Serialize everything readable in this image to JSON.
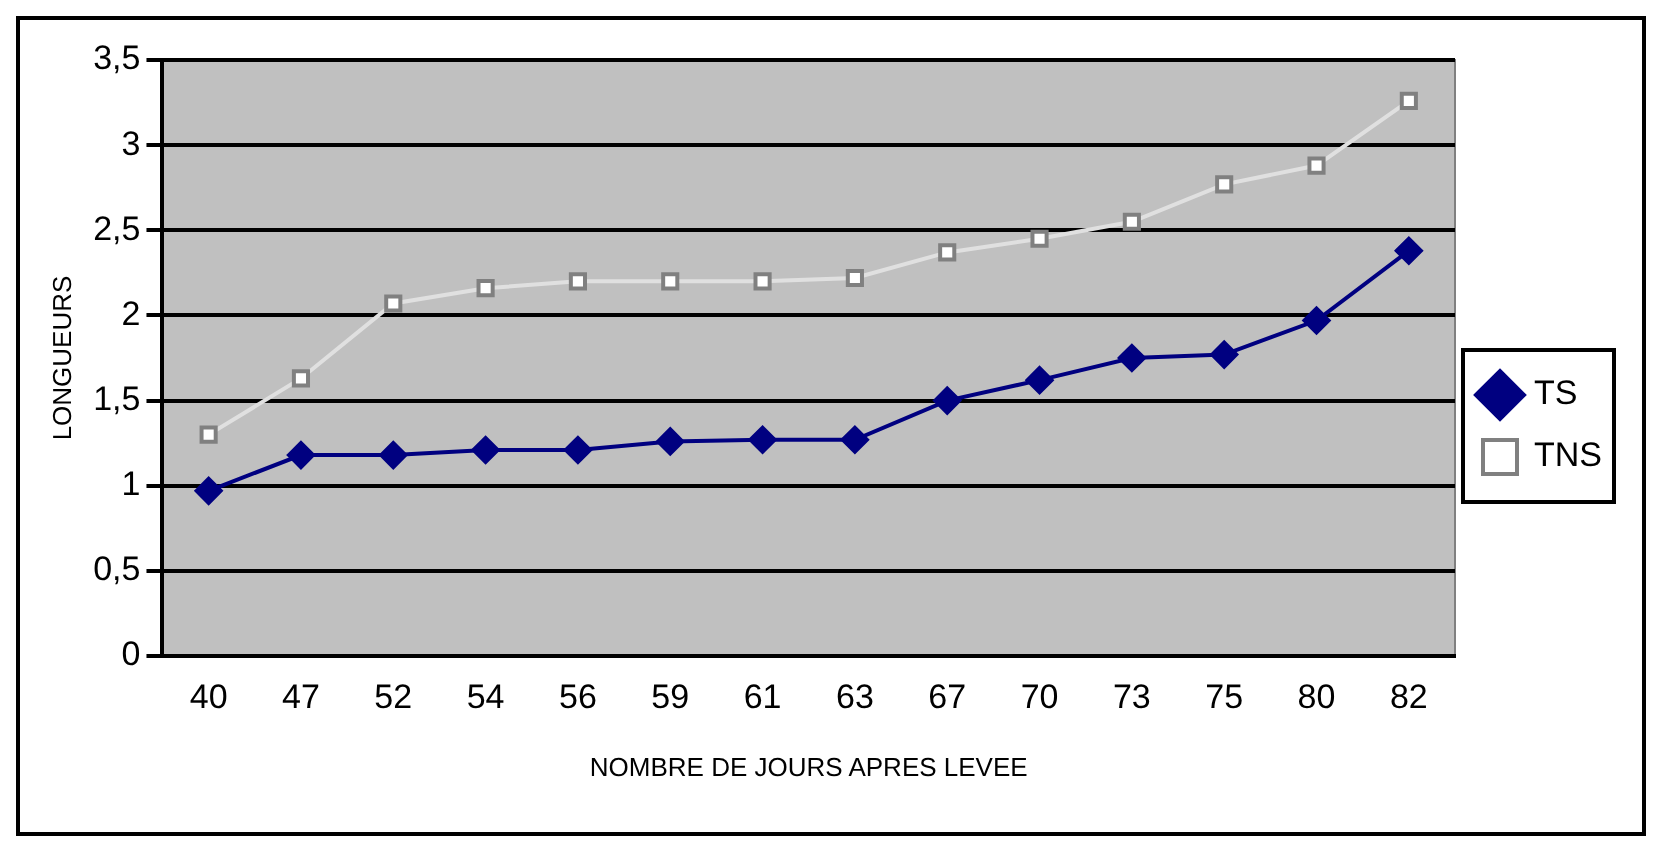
{
  "chart_data": {
    "type": "line",
    "xlabel": "NOMBRE DE JOURS APRES LEVEE",
    "ylabel": "LONGUEURS",
    "categories": [
      "40",
      "47",
      "52",
      "54",
      "56",
      "59",
      "61",
      "63",
      "67",
      "70",
      "73",
      "75",
      "80",
      "82"
    ],
    "series": [
      {
        "name": "TS",
        "color": "#000080",
        "marker": "diamond",
        "values": [
          0.97,
          1.18,
          1.18,
          1.21,
          1.21,
          1.26,
          1.27,
          1.27,
          1.5,
          1.62,
          1.75,
          1.77,
          1.97,
          2.38
        ]
      },
      {
        "name": "TNS",
        "color": "#ffffff",
        "marker": "square",
        "values": [
          1.3,
          1.63,
          2.07,
          2.16,
          2.2,
          2.2,
          2.2,
          2.22,
          2.37,
          2.45,
          2.55,
          2.77,
          2.88,
          3.26
        ]
      }
    ],
    "ylim": [
      0,
      3.5
    ],
    "yticks": [
      {
        "value": 0,
        "label": "0"
      },
      {
        "value": 0.5,
        "label": "0,5"
      },
      {
        "value": 1,
        "label": "1"
      },
      {
        "value": 1.5,
        "label": "1,5"
      },
      {
        "value": 2,
        "label": "2"
      },
      {
        "value": 2.5,
        "label": "2,5"
      },
      {
        "value": 3,
        "label": "3"
      },
      {
        "value": 3.5,
        "label": "3,5"
      }
    ],
    "grid": "y",
    "legend": "right"
  }
}
